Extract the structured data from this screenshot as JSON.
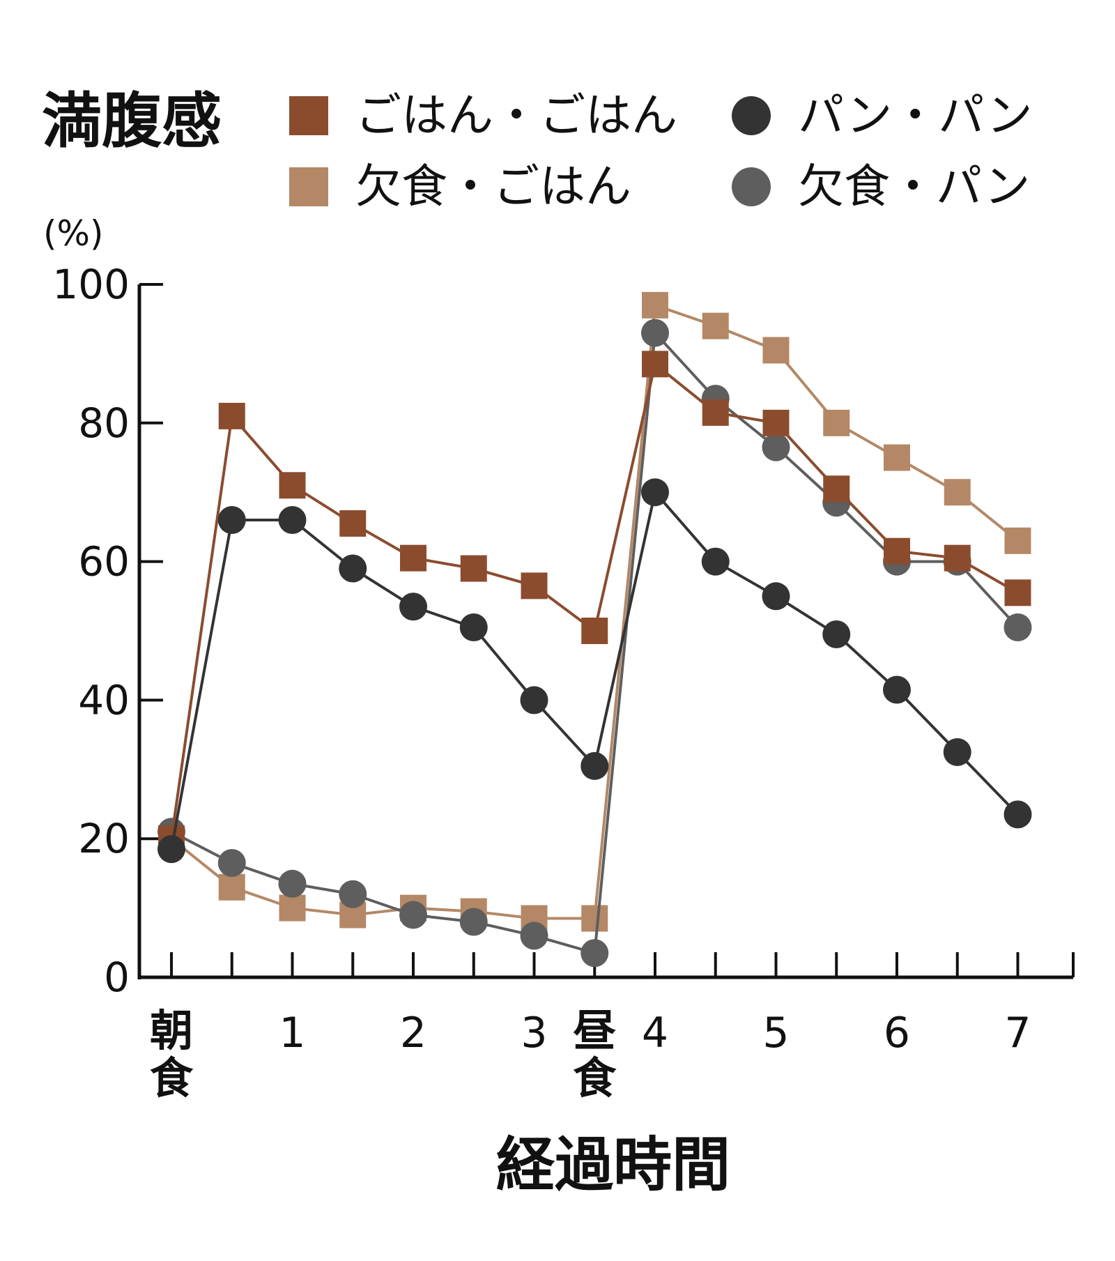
{
  "chart_data": {
    "type": "line",
    "title": "満腹感",
    "ylabel": "(%)",
    "xlabel": "経過時間",
    "ylim": [
      0,
      100
    ],
    "yticks": [
      0,
      20,
      40,
      60,
      80,
      100
    ],
    "x_tick_labels": [
      {
        "x": 0,
        "label": "朝食"
      },
      {
        "x": 1,
        "label": "1"
      },
      {
        "x": 2,
        "label": "2"
      },
      {
        "x": 3,
        "label": "3"
      },
      {
        "x": 3.5,
        "label": "昼食"
      },
      {
        "x": 4,
        "label": "4"
      },
      {
        "x": 5,
        "label": "5"
      },
      {
        "x": 6,
        "label": "6"
      },
      {
        "x": 7,
        "label": "7"
      }
    ],
    "x": [
      0,
      0.5,
      1,
      1.5,
      2,
      2.5,
      3,
      3.5,
      4,
      4.5,
      5,
      5.5,
      6,
      6.5,
      7
    ],
    "legend_position": "top",
    "series": [
      {
        "name": "ごはん・ごはん",
        "marker": "square",
        "color": "#8b4c2e",
        "values": [
          20,
          81,
          71,
          65.5,
          60.5,
          59,
          56.5,
          50,
          88.5,
          81.5,
          80,
          70.5,
          61.5,
          60.5,
          55.5
        ]
      },
      {
        "name": "パン・パン",
        "marker": "circle",
        "color": "#333333",
        "values": [
          18.5,
          66,
          66,
          59,
          53.5,
          50.5,
          40,
          30.5,
          70,
          60,
          55,
          49.5,
          41.5,
          32.5,
          23.5
        ]
      },
      {
        "name": "欠食・ごはん",
        "marker": "square",
        "color": "#b48866",
        "values": [
          20,
          13,
          10,
          9,
          10,
          9.5,
          8.5,
          8.5,
          97,
          94,
          90.5,
          80,
          75,
          70,
          63
        ]
      },
      {
        "name": "欠食・パン",
        "marker": "circle",
        "color": "#5e5e5e",
        "values": [
          21,
          16.5,
          13.5,
          12,
          9,
          8,
          6,
          3.5,
          93,
          83.5,
          76.5,
          68.5,
          60,
          60,
          50.5
        ]
      }
    ]
  }
}
